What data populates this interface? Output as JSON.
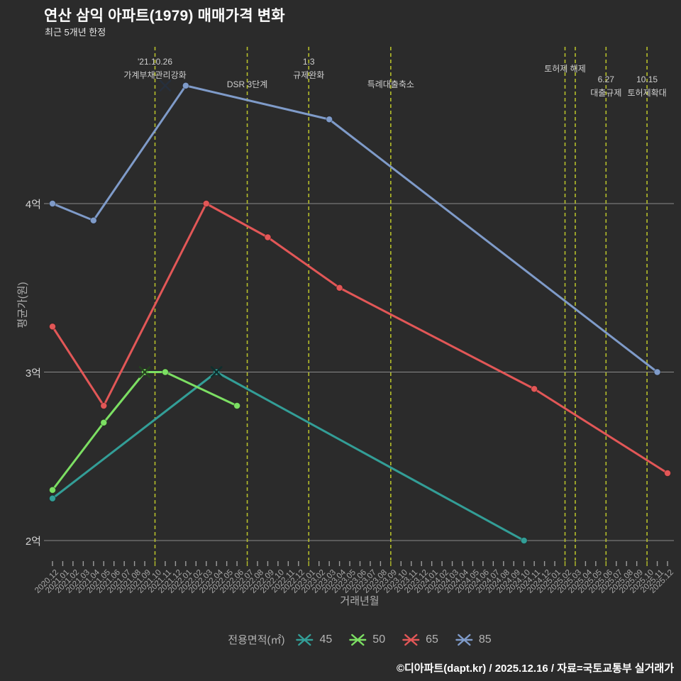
{
  "title": "연산 삼익 아파트(1979) 매매가격 변화",
  "subtitle": "최근 5개년 한정",
  "footer": "©디아파트(dapt.kr) / 2025.12.16 / 자료=국토교통부 실거래가",
  "colors": {
    "background": "#2b2b2b",
    "grid": "#8a8a8a",
    "tick": "#9c9c9c",
    "event_line": "#b6bf2b",
    "text_primary": "#ffffff",
    "text_secondary": "#cfcfcf",
    "text_muted": "#a8a8a8"
  },
  "chart_data": {
    "type": "line",
    "title": "연산 삼익 아파트(1979) 매매가격 변화",
    "subtitle": "최근 5개년 한정",
    "xlabel": "거래년월",
    "ylabel": "평균가(원)",
    "unit": "억",
    "ylim": [
      1.88,
      4.93
    ],
    "grid": true,
    "legend_position": "bottom",
    "y_ticks": [
      {
        "value": 4,
        "label": "4억"
      },
      {
        "value": 3,
        "label": "3억"
      },
      {
        "value": 2,
        "label": "2억"
      }
    ],
    "x_ticks": [
      "2020.12",
      "2021.01",
      "2021.02",
      "2021.03",
      "2021.04",
      "2021.05",
      "2021.06",
      "2021.07",
      "2021.08",
      "2021.09",
      "2021.10",
      "2021.11",
      "2021.12",
      "2022.01",
      "2022.02",
      "2022.03",
      "2022.04",
      "2022.05",
      "2022.06",
      "2022.07",
      "2022.08",
      "2022.09",
      "2022.10",
      "2022.11",
      "2022.12",
      "2023.01",
      "2023.02",
      "2023.03",
      "2023.04",
      "2023.05",
      "2023.06",
      "2023.07",
      "2023.08",
      "2023.09",
      "2023.10",
      "2023.11",
      "2023.12",
      "2024.01",
      "2024.02",
      "2024.03",
      "2024.04",
      "2024.05",
      "2024.06",
      "2024.07",
      "2024.08",
      "2024.09",
      "2024.10",
      "2024.11",
      "2024.12",
      "2025.01",
      "2025.02",
      "2025.03",
      "2025.04",
      "2025.05",
      "2025.06",
      "2025.07",
      "2025.08",
      "2025.09",
      "2025.10",
      "2025.11",
      "2025.12"
    ],
    "series": [
      {
        "name": "45",
        "color": "#339e97",
        "points": [
          [
            "2020.12",
            2.25
          ],
          [
            "2022.04",
            3.0
          ],
          [
            "2024.10",
            2.0
          ]
        ],
        "cancel_marks": [
          [
            "2022.04",
            3.0
          ]
        ]
      },
      {
        "name": "50",
        "color": "#7cdf63",
        "points": [
          [
            "2020.12",
            2.3
          ],
          [
            "2021.05",
            2.7
          ],
          [
            "2021.09",
            3.0
          ],
          [
            "2021.11",
            3.0
          ],
          [
            "2022.06",
            2.8
          ]
        ],
        "cancel_marks": [
          [
            "2021.09",
            3.0
          ]
        ]
      },
      {
        "name": "65",
        "color": "#e25757",
        "points": [
          [
            "2020.12",
            3.27
          ],
          [
            "2021.05",
            2.8
          ],
          [
            "2022.03",
            4.0
          ],
          [
            "2022.09",
            3.8
          ],
          [
            "2023.04",
            3.5
          ],
          [
            "2024.11",
            2.9
          ],
          [
            "2025.12",
            2.4
          ]
        ],
        "cancel_marks": []
      },
      {
        "name": "85",
        "color": "#7f9bc9",
        "points": [
          [
            "2020.12",
            4.0
          ],
          [
            "2021.04",
            3.9
          ],
          [
            "2022.01",
            4.7
          ],
          [
            "2023.03",
            4.5
          ],
          [
            "2025.11",
            3.0
          ]
        ],
        "cancel_marks": [
          [
            "2021.11",
            4.7
          ]
        ]
      }
    ],
    "events": [
      {
        "x": "2021.10",
        "lines": [
          "'21.10.26",
          "가계부채관리강화"
        ],
        "top": 78
      },
      {
        "x": "2022.07",
        "lines": [
          "DSR 3단계"
        ],
        "top": 110
      },
      {
        "x": "2023.01",
        "lines": [
          "1.3",
          "규제완화"
        ],
        "top": 78
      },
      {
        "x": "2023.09",
        "lines": [
          "특례대출축소"
        ],
        "top": 110
      },
      {
        "x": "2025.02",
        "lines": [
          "토허제 해제"
        ],
        "top": 88
      },
      {
        "x": "2025.03",
        "lines": []
      },
      {
        "x": "2025.06",
        "lines": [
          "6.27",
          "대출규제"
        ],
        "top": 103
      },
      {
        "x": "2025.10",
        "lines": [
          "10.15",
          "토허제확대"
        ],
        "top": 103
      }
    ],
    "legend": {
      "label": "전용면적(㎡)",
      "entries": [
        "45",
        "50",
        "65",
        "85"
      ]
    }
  }
}
